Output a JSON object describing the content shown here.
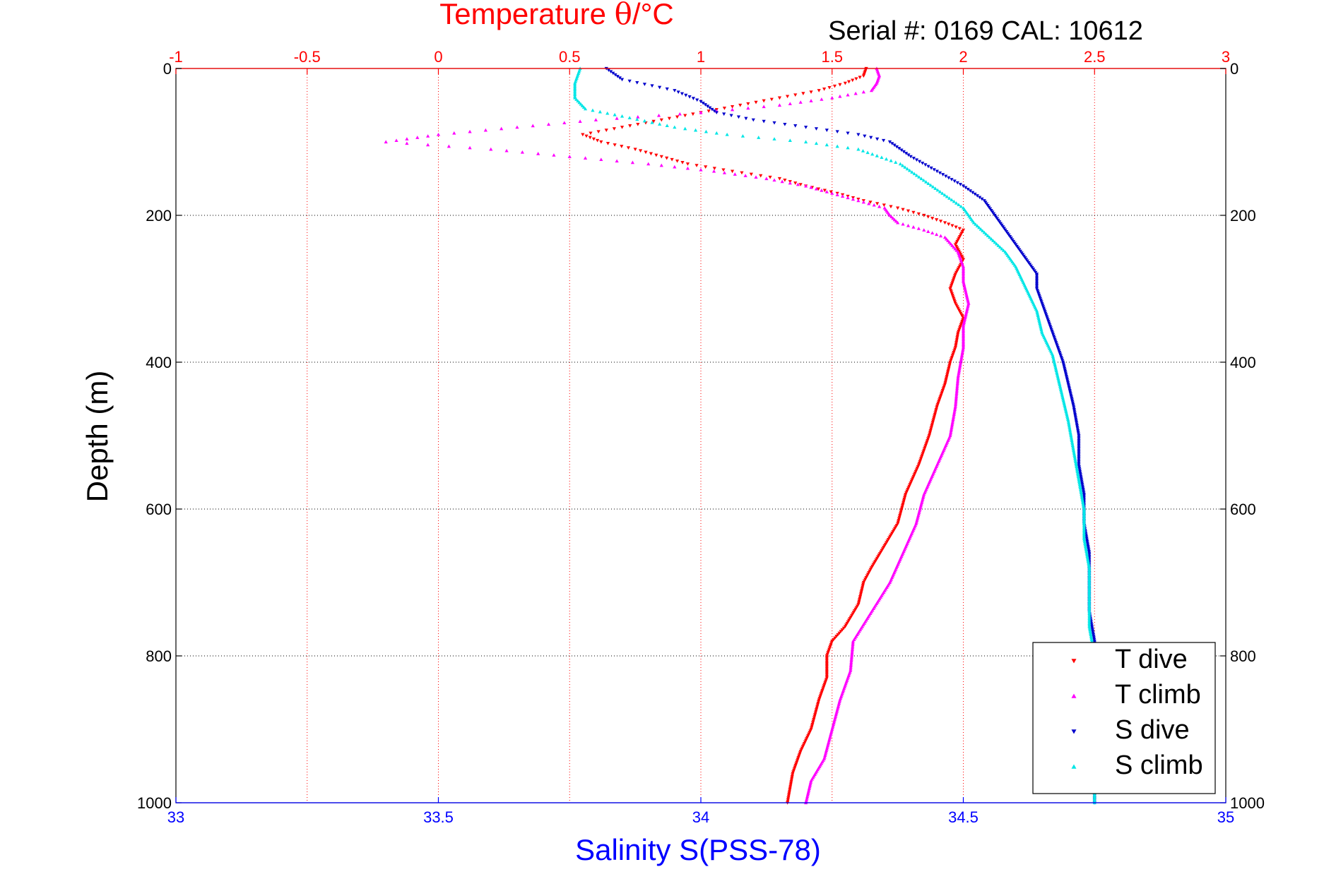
{
  "chart_data": {
    "type": "scatter",
    "subtitle": "Serial #: 0169 CAL: 10612",
    "top_axis": {
      "label_prefix": "Temperature ",
      "label_theta": "θ",
      "label_suffix": "/°C",
      "range": [
        -1,
        3
      ],
      "ticks": [
        -1,
        -0.5,
        0,
        0.5,
        1,
        1.5,
        2,
        2.5,
        3
      ],
      "tick_labels": [
        "-1",
        "-0.5",
        "0",
        "0.5",
        "1",
        "1.5",
        "2",
        "2.5",
        "3"
      ],
      "color": "#ff0000"
    },
    "bottom_axis": {
      "label": "Salinity S(PSS-78)",
      "range": [
        33,
        35
      ],
      "ticks": [
        33,
        33.5,
        34,
        34.5,
        35
      ],
      "tick_labels": [
        "33",
        "33.5",
        "34",
        "34.5",
        "35"
      ],
      "color": "#0000ff"
    },
    "y_axis": {
      "label": "Depth (m)",
      "range": [
        0,
        1000
      ],
      "reversed": true,
      "ticks": [
        0,
        200,
        400,
        600,
        800,
        1000
      ],
      "tick_labels": [
        "0",
        "200",
        "400",
        "600",
        "800",
        "1000"
      ]
    },
    "grid": true,
    "legend": {
      "position": "bottom-right",
      "entries": [
        "T dive",
        "T climb",
        "S dive",
        "S climb"
      ]
    },
    "series": [
      {
        "name": "T dive",
        "axis": "temperature",
        "color": "#ff0000",
        "marker": "triangle-down",
        "points": [
          [
            1.63,
            0
          ],
          [
            1.62,
            10
          ],
          [
            1.55,
            20
          ],
          [
            1.45,
            30
          ],
          [
            1.3,
            40
          ],
          [
            1.15,
            50
          ],
          [
            1.0,
            60
          ],
          [
            0.85,
            70
          ],
          [
            0.7,
            80
          ],
          [
            0.55,
            90
          ],
          [
            0.62,
            100
          ],
          [
            0.75,
            110
          ],
          [
            0.85,
            120
          ],
          [
            0.95,
            130
          ],
          [
            1.12,
            140
          ],
          [
            1.3,
            150
          ],
          [
            1.4,
            160
          ],
          [
            1.52,
            170
          ],
          [
            1.62,
            180
          ],
          [
            1.75,
            190
          ],
          [
            1.85,
            200
          ],
          [
            1.93,
            210
          ],
          [
            2.0,
            220
          ],
          [
            1.97,
            240
          ],
          [
            2.0,
            260
          ],
          [
            1.97,
            280
          ],
          [
            1.95,
            300
          ],
          [
            1.97,
            320
          ],
          [
            2.0,
            340
          ],
          [
            1.98,
            360
          ],
          [
            1.97,
            380
          ],
          [
            1.95,
            400
          ],
          [
            1.93,
            430
          ],
          [
            1.9,
            460
          ],
          [
            1.87,
            500
          ],
          [
            1.83,
            540
          ],
          [
            1.78,
            580
          ],
          [
            1.75,
            620
          ],
          [
            1.7,
            650
          ],
          [
            1.65,
            680
          ],
          [
            1.62,
            700
          ],
          [
            1.6,
            730
          ],
          [
            1.55,
            760
          ],
          [
            1.5,
            780
          ],
          [
            1.48,
            800
          ],
          [
            1.48,
            830
          ],
          [
            1.45,
            860
          ],
          [
            1.42,
            900
          ],
          [
            1.38,
            930
          ],
          [
            1.35,
            960
          ],
          [
            1.33,
            1000
          ]
        ]
      },
      {
        "name": "T climb",
        "axis": "temperature",
        "color": "#ff00ff",
        "marker": "triangle-up",
        "points": [
          [
            1.67,
            0
          ],
          [
            1.68,
            10
          ],
          [
            1.67,
            20
          ],
          [
            1.65,
            30
          ],
          [
            1.5,
            40
          ],
          [
            1.3,
            50
          ],
          [
            1.0,
            60
          ],
          [
            0.6,
            70
          ],
          [
            0.3,
            80
          ],
          [
            0.0,
            90
          ],
          [
            -0.2,
            100
          ],
          [
            0.2,
            110
          ],
          [
            0.5,
            120
          ],
          [
            0.8,
            130
          ],
          [
            1.05,
            140
          ],
          [
            1.25,
            150
          ],
          [
            1.4,
            160
          ],
          [
            1.5,
            170
          ],
          [
            1.6,
            180
          ],
          [
            1.7,
            190
          ],
          [
            1.72,
            200
          ],
          [
            1.75,
            210
          ],
          [
            1.85,
            220
          ],
          [
            1.93,
            230
          ],
          [
            1.98,
            250
          ],
          [
            2.0,
            270
          ],
          [
            2.0,
            290
          ],
          [
            2.02,
            320
          ],
          [
            2.0,
            350
          ],
          [
            2.0,
            380
          ],
          [
            1.98,
            420
          ],
          [
            1.97,
            460
          ],
          [
            1.95,
            500
          ],
          [
            1.9,
            540
          ],
          [
            1.85,
            580
          ],
          [
            1.82,
            620
          ],
          [
            1.77,
            660
          ],
          [
            1.72,
            700
          ],
          [
            1.65,
            740
          ],
          [
            1.58,
            780
          ],
          [
            1.57,
            820
          ],
          [
            1.53,
            860
          ],
          [
            1.5,
            900
          ],
          [
            1.47,
            940
          ],
          [
            1.42,
            970
          ],
          [
            1.4,
            1000
          ]
        ]
      },
      {
        "name": "S dive",
        "axis": "salinity",
        "color": "#0000cc",
        "marker": "triangle-down",
        "points": [
          [
            33.82,
            0
          ],
          [
            33.85,
            15
          ],
          [
            33.95,
            30
          ],
          [
            34.0,
            45
          ],
          [
            34.03,
            60
          ],
          [
            34.1,
            70
          ],
          [
            34.2,
            80
          ],
          [
            34.3,
            90
          ],
          [
            34.36,
            100
          ],
          [
            34.4,
            120
          ],
          [
            34.45,
            140
          ],
          [
            34.5,
            160
          ],
          [
            34.54,
            180
          ],
          [
            34.56,
            200
          ],
          [
            34.58,
            220
          ],
          [
            34.6,
            240
          ],
          [
            34.62,
            260
          ],
          [
            34.64,
            280
          ],
          [
            34.64,
            300
          ],
          [
            34.65,
            320
          ],
          [
            34.66,
            340
          ],
          [
            34.67,
            360
          ],
          [
            34.68,
            380
          ],
          [
            34.69,
            400
          ],
          [
            34.7,
            430
          ],
          [
            34.71,
            460
          ],
          [
            34.72,
            500
          ],
          [
            34.72,
            540
          ],
          [
            34.73,
            580
          ],
          [
            34.73,
            620
          ],
          [
            34.74,
            660
          ],
          [
            34.74,
            700
          ],
          [
            34.74,
            740
          ],
          [
            34.75,
            780
          ],
          [
            34.75,
            820
          ],
          [
            34.75,
            860
          ],
          [
            34.75,
            900
          ],
          [
            34.75,
            940
          ],
          [
            34.75,
            980
          ],
          [
            34.75,
            1000
          ]
        ]
      },
      {
        "name": "S climb",
        "axis": "salinity",
        "color": "#00e6e6",
        "marker": "triangle-up",
        "points": [
          [
            33.77,
            0
          ],
          [
            33.76,
            20
          ],
          [
            33.76,
            40
          ],
          [
            33.78,
            55
          ],
          [
            33.85,
            65
          ],
          [
            33.95,
            80
          ],
          [
            34.05,
            90
          ],
          [
            34.2,
            100
          ],
          [
            34.3,
            110
          ],
          [
            34.38,
            130
          ],
          [
            34.42,
            150
          ],
          [
            34.46,
            170
          ],
          [
            34.5,
            190
          ],
          [
            34.52,
            210
          ],
          [
            34.55,
            230
          ],
          [
            34.58,
            250
          ],
          [
            34.6,
            270
          ],
          [
            34.62,
            300
          ],
          [
            34.64,
            330
          ],
          [
            34.65,
            360
          ],
          [
            34.67,
            390
          ],
          [
            34.68,
            420
          ],
          [
            34.69,
            450
          ],
          [
            34.7,
            480
          ],
          [
            34.71,
            520
          ],
          [
            34.72,
            560
          ],
          [
            34.73,
            600
          ],
          [
            34.73,
            640
          ],
          [
            34.74,
            680
          ],
          [
            34.74,
            720
          ],
          [
            34.74,
            760
          ],
          [
            34.75,
            800
          ],
          [
            34.75,
            840
          ],
          [
            34.75,
            880
          ],
          [
            34.75,
            920
          ],
          [
            34.75,
            960
          ],
          [
            34.75,
            1000
          ]
        ]
      }
    ]
  }
}
